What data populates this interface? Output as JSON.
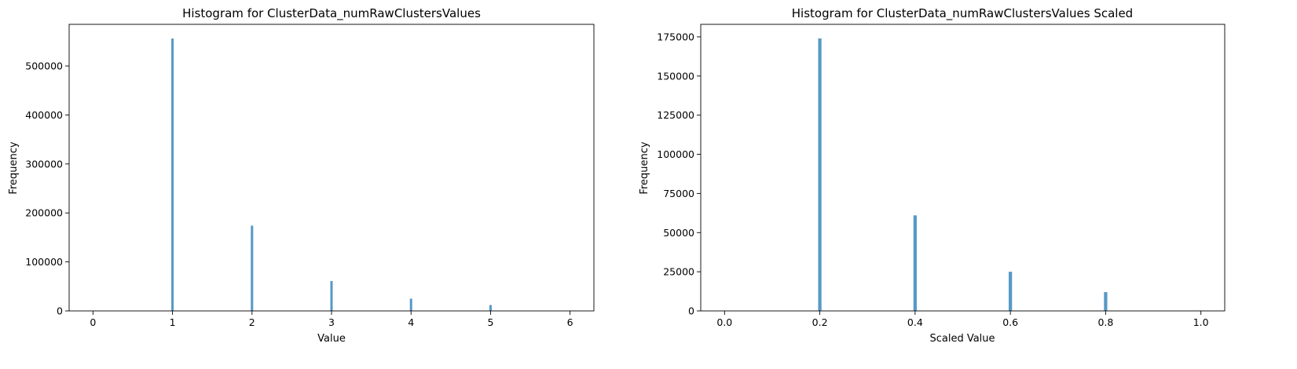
{
  "chart_data": [
    {
      "type": "bar",
      "title": "Histogram for ClusterData_numRawClustersValues",
      "xlabel": "Value",
      "ylabel": "Frequency",
      "xlim": [
        -0.3,
        6.3
      ],
      "ylim": [
        0,
        585000
      ],
      "xticks": [
        0,
        1,
        2,
        3,
        4,
        5,
        6
      ],
      "yticks": [
        0,
        100000,
        200000,
        300000,
        400000,
        500000
      ],
      "bar_color": "#1f77b4",
      "bar_width": 0.03,
      "grid": false,
      "bars": [
        {
          "x": 1,
          "value": 556000
        },
        {
          "x": 2,
          "value": 174000
        },
        {
          "x": 3,
          "value": 61000
        },
        {
          "x": 4,
          "value": 25000
        },
        {
          "x": 5,
          "value": 12000
        }
      ]
    },
    {
      "type": "bar",
      "title": "Histogram for ClusterData_numRawClustersValues Scaled",
      "xlabel": "Scaled Value",
      "ylabel": "Frequency",
      "xlim": [
        -0.05,
        1.05
      ],
      "ylim": [
        0,
        183000
      ],
      "xticks": [
        0.0,
        0.2,
        0.4,
        0.6,
        0.8,
        1.0
      ],
      "xtick_labels": [
        "0.0",
        "0.2",
        "0.4",
        "0.6",
        "0.8",
        "1.0"
      ],
      "yticks": [
        0,
        25000,
        50000,
        75000,
        100000,
        125000,
        150000,
        175000
      ],
      "bar_color": "#1f77b4",
      "bar_width": 0.007,
      "grid": false,
      "bars": [
        {
          "x": 0.2,
          "value": 174000
        },
        {
          "x": 0.4,
          "value": 61000
        },
        {
          "x": 0.6,
          "value": 25000
        },
        {
          "x": 0.8,
          "value": 12000
        }
      ]
    }
  ]
}
